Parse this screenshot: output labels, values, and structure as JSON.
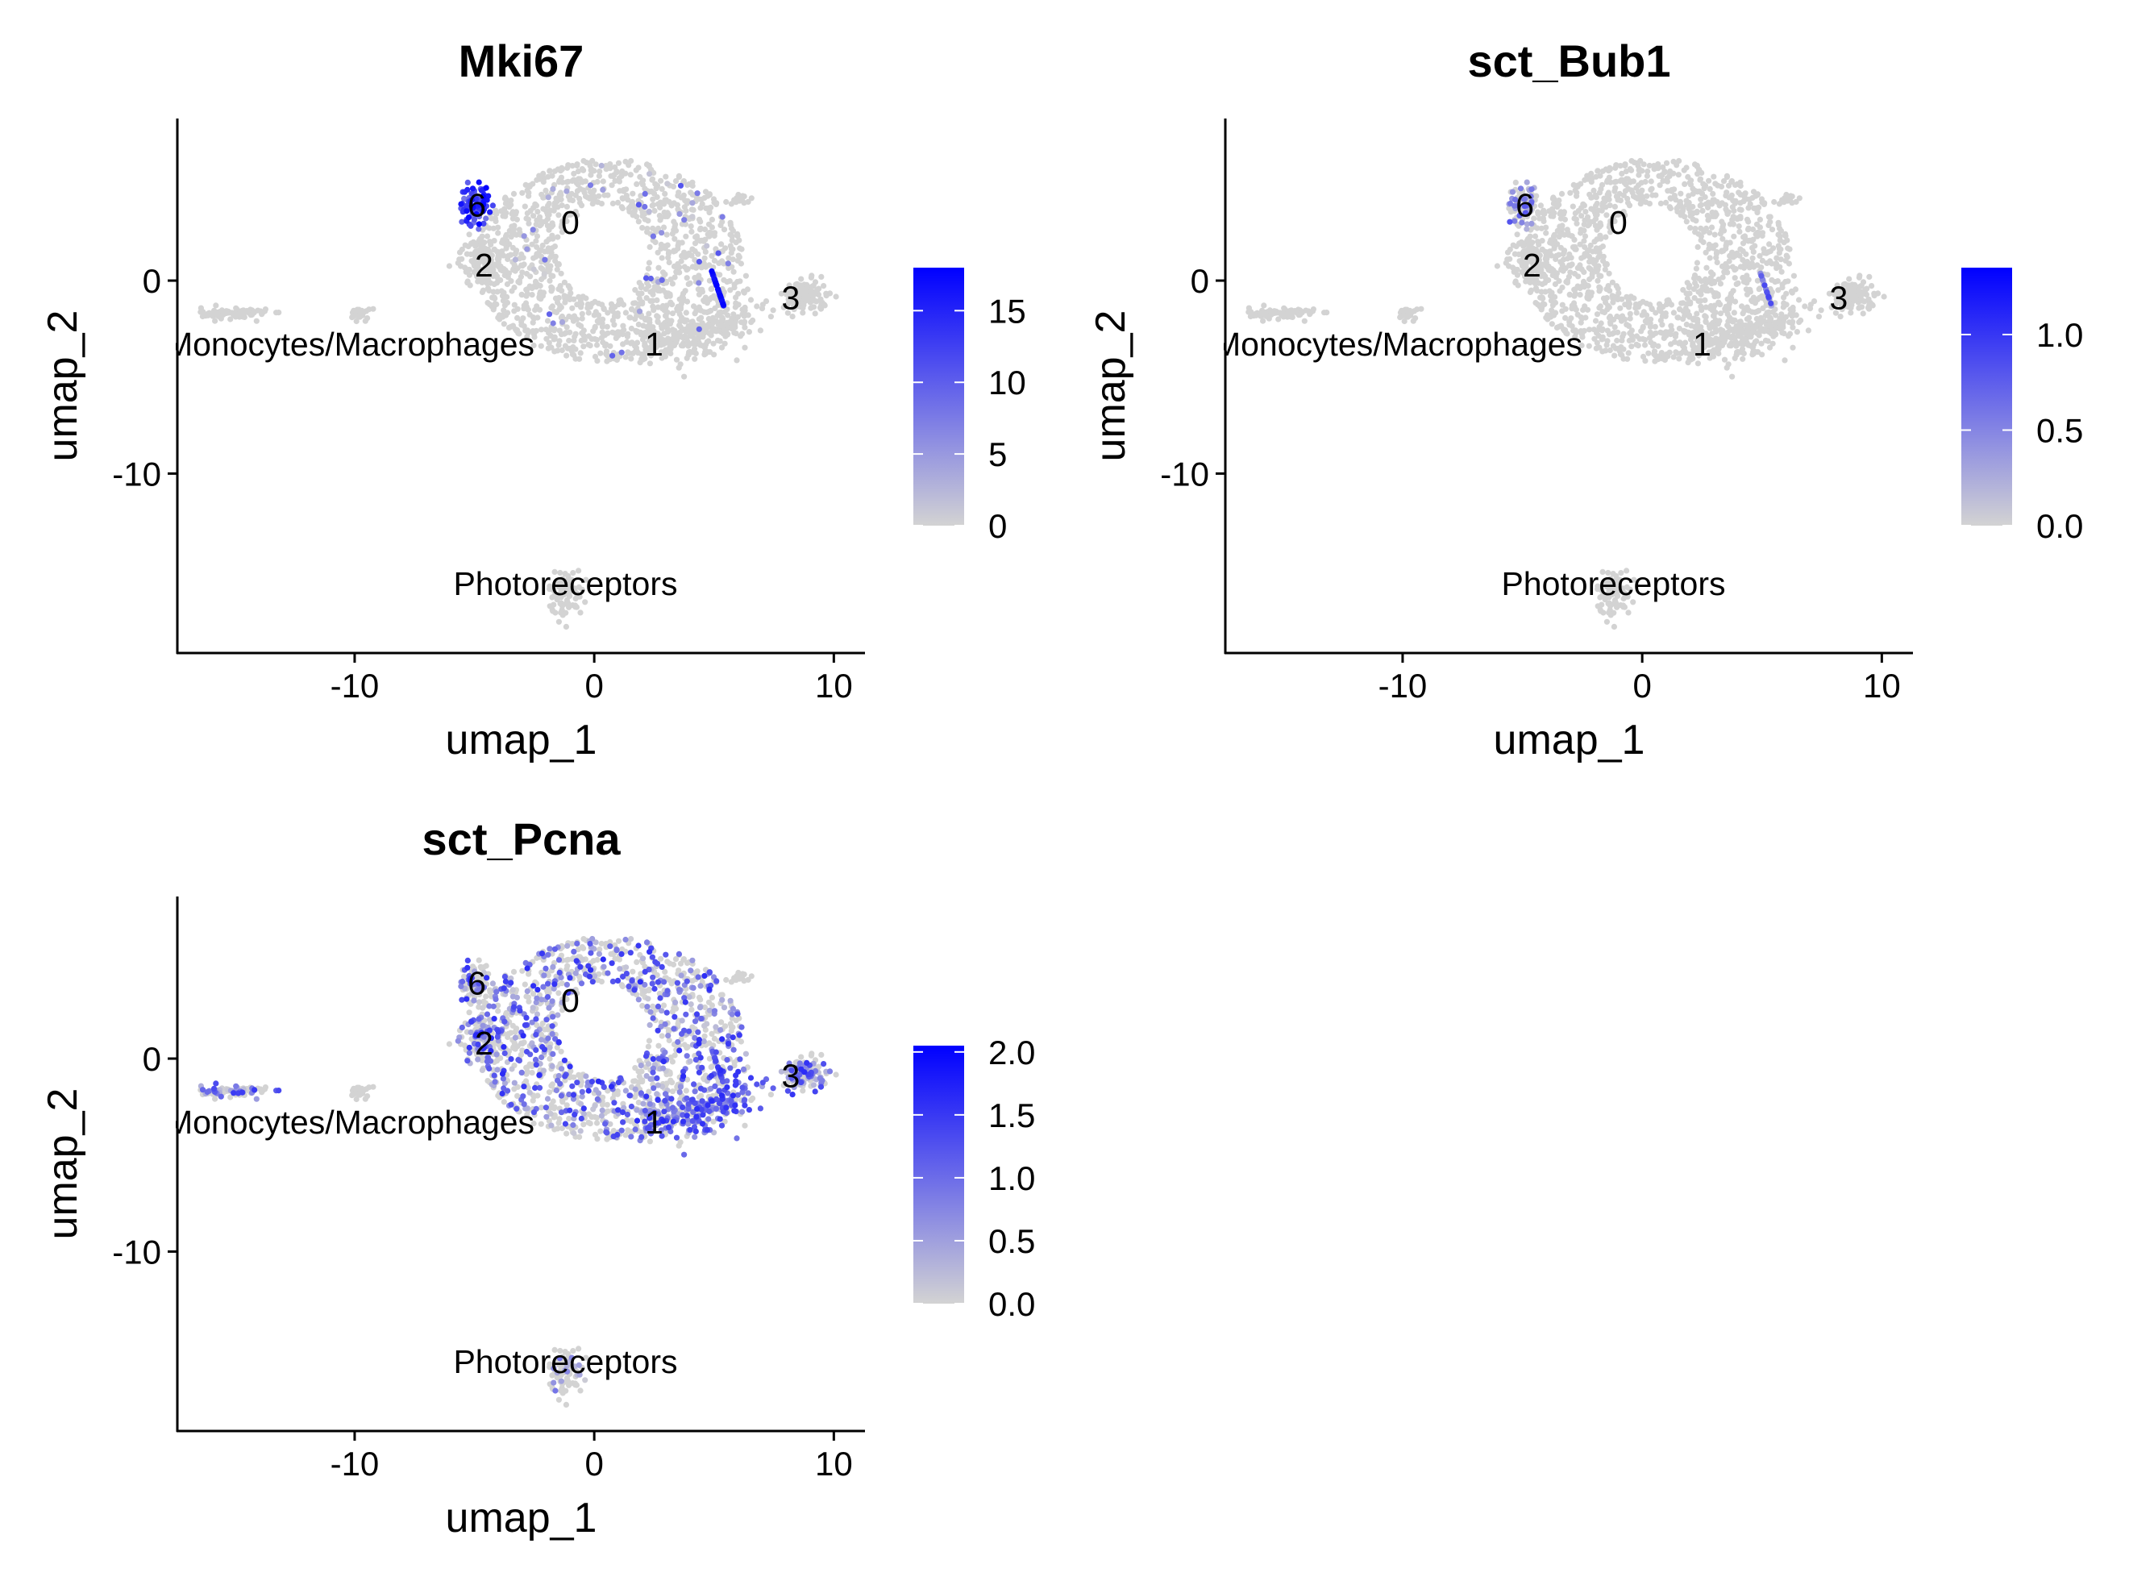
{
  "colors": {
    "low": "#d3d3d3",
    "high": "#0000ff",
    "axis": "#000000"
  },
  "chart_data": [
    {
      "type": "scatter",
      "title": "Mki67",
      "xlabel": "umap_1",
      "ylabel": "umap_2",
      "xlim": [
        -17.4,
        11.3
      ],
      "ylim": [
        -19.3,
        8.4
      ],
      "xticks": [
        -10,
        0,
        10
      ],
      "xtick_labels": [
        "-10",
        "0",
        "10"
      ],
      "yticks": [
        0,
        -10
      ],
      "ytick_labels": [
        "0",
        "-10"
      ],
      "color_scale": {
        "min": 0,
        "max": 18,
        "ticks": [
          0,
          5,
          10,
          15
        ],
        "labels": [
          "0",
          "5",
          "10",
          "15"
        ]
      },
      "feature": "Mki67",
      "cluster_labels": [
        {
          "text": "0",
          "x": -1.0,
          "y": 3.0
        },
        {
          "text": "1",
          "x": 2.5,
          "y": -3.3
        },
        {
          "text": "2",
          "x": -4.6,
          "y": 0.8
        },
        {
          "text": "3",
          "x": 8.2,
          "y": -0.9
        },
        {
          "text": "6",
          "x": -4.9,
          "y": 3.9
        },
        {
          "text": "Monocytes/Macrophages",
          "x": -10.2,
          "y": -3.3
        },
        {
          "text": "Photoreceptors",
          "x": -1.2,
          "y": -15.7
        }
      ]
    },
    {
      "type": "scatter",
      "title": "sct_Bub1",
      "xlabel": "umap_1",
      "ylabel": "umap_2",
      "xlim": [
        -17.4,
        11.3
      ],
      "ylim": [
        -19.3,
        8.4
      ],
      "xticks": [
        -10,
        0,
        10
      ],
      "xtick_labels": [
        "-10",
        "0",
        "10"
      ],
      "yticks": [
        0,
        -10
      ],
      "ytick_labels": [
        "0",
        "-10"
      ],
      "color_scale": {
        "min": 0,
        "max": 1.35,
        "ticks": [
          0,
          0.5,
          1.0
        ],
        "labels": [
          "0.0",
          "0.5",
          "1.0"
        ]
      },
      "feature": "sct_Bub1",
      "cluster_labels": [
        {
          "text": "0",
          "x": -1.0,
          "y": 3.0
        },
        {
          "text": "1",
          "x": 2.5,
          "y": -3.3
        },
        {
          "text": "2",
          "x": -4.6,
          "y": 0.8
        },
        {
          "text": "3",
          "x": 8.2,
          "y": -0.9
        },
        {
          "text": "6",
          "x": -4.9,
          "y": 3.9
        },
        {
          "text": "Monocytes/Macrophages",
          "x": -10.2,
          "y": -3.3
        },
        {
          "text": "Photoreceptors",
          "x": -1.2,
          "y": -15.7
        }
      ]
    },
    {
      "type": "scatter",
      "title": "sct_Pcna",
      "xlabel": "umap_1",
      "ylabel": "umap_2",
      "xlim": [
        -17.4,
        11.3
      ],
      "ylim": [
        -19.3,
        8.4
      ],
      "xticks": [
        -10,
        0,
        10
      ],
      "xtick_labels": [
        "-10",
        "0",
        "10"
      ],
      "yticks": [
        0,
        -10
      ],
      "ytick_labels": [
        "0",
        "-10"
      ],
      "color_scale": {
        "min": 0,
        "max": 2.05,
        "ticks": [
          0,
          0.5,
          1.0,
          1.5,
          2.0
        ],
        "labels": [
          "0.0",
          "0.5",
          "1.0",
          "1.5",
          "2.0"
        ]
      },
      "feature": "sct_Pcna",
      "cluster_labels": [
        {
          "text": "0",
          "x": -1.0,
          "y": 3.0
        },
        {
          "text": "1",
          "x": 2.5,
          "y": -3.3
        },
        {
          "text": "2",
          "x": -4.6,
          "y": 0.8
        },
        {
          "text": "3",
          "x": 8.2,
          "y": -0.9
        },
        {
          "text": "6",
          "x": -4.9,
          "y": 3.9
        },
        {
          "text": "Monocytes/Macrophages",
          "x": -10.2,
          "y": -3.3
        },
        {
          "text": "Photoreceptors",
          "x": -1.2,
          "y": -15.7
        }
      ]
    }
  ]
}
